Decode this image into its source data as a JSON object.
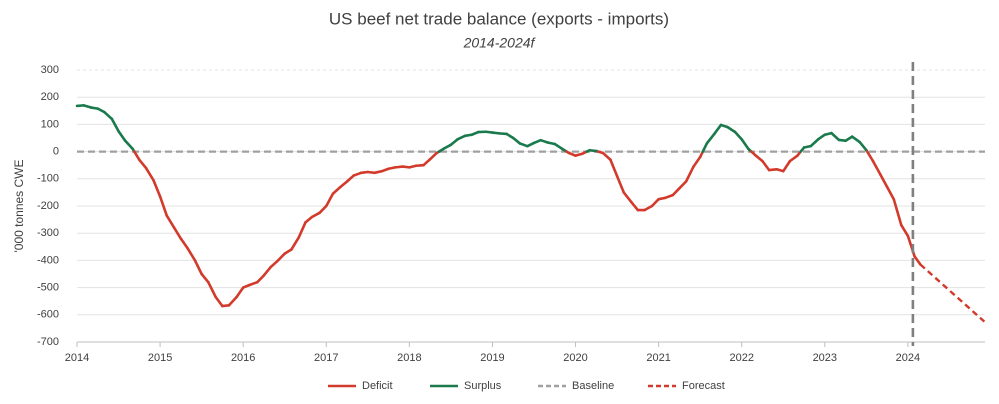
{
  "chart_data": {
    "type": "line",
    "title": "US beef net trade balance (exports - imports)",
    "subtitle": "2014-2024f",
    "y_label": "'000 tonnes CWE",
    "x": [
      2014.0,
      2014.08,
      2014.17,
      2014.25,
      2014.33,
      2014.42,
      2014.5,
      2014.58,
      2014.67,
      2014.75,
      2014.83,
      2014.92,
      2015.0,
      2015.08,
      2015.17,
      2015.25,
      2015.33,
      2015.42,
      2015.5,
      2015.58,
      2015.67,
      2015.75,
      2015.83,
      2015.92,
      2016.0,
      2016.08,
      2016.17,
      2016.25,
      2016.33,
      2016.42,
      2016.5,
      2016.58,
      2016.67,
      2016.75,
      2016.83,
      2016.92,
      2017.0,
      2017.08,
      2017.17,
      2017.25,
      2017.33,
      2017.42,
      2017.5,
      2017.58,
      2017.67,
      2017.75,
      2017.83,
      2017.92,
      2018.0,
      2018.08,
      2018.17,
      2018.25,
      2018.33,
      2018.42,
      2018.5,
      2018.58,
      2018.67,
      2018.75,
      2018.83,
      2018.92,
      2019.0,
      2019.08,
      2019.17,
      2019.25,
      2019.33,
      2019.42,
      2019.5,
      2019.58,
      2019.67,
      2019.75,
      2019.83,
      2019.92,
      2020.0,
      2020.08,
      2020.17,
      2020.25,
      2020.33,
      2020.42,
      2020.5,
      2020.58,
      2020.67,
      2020.75,
      2020.83,
      2020.92,
      2021.0,
      2021.08,
      2021.17,
      2021.25,
      2021.33,
      2021.42,
      2021.5,
      2021.58,
      2021.67,
      2021.75,
      2021.83,
      2021.92,
      2022.0,
      2022.08,
      2022.17,
      2022.25,
      2022.33,
      2022.42,
      2022.5,
      2022.58,
      2022.67,
      2022.75,
      2022.83,
      2022.92,
      2023.0,
      2023.08,
      2023.17,
      2023.25,
      2023.33,
      2023.42,
      2023.5,
      2023.58,
      2023.67,
      2023.75,
      2023.83,
      2023.92,
      2024.0,
      2024.08,
      2024.15
    ],
    "values": [
      168,
      170,
      162,
      158,
      145,
      120,
      75,
      40,
      10,
      -30,
      -60,
      -105,
      -165,
      -235,
      -280,
      -320,
      -355,
      -400,
      -450,
      -480,
      -535,
      -568,
      -565,
      -535,
      -500,
      -490,
      -480,
      -455,
      -425,
      -400,
      -375,
      -360,
      -315,
      -260,
      -240,
      -225,
      -200,
      -155,
      -130,
      -110,
      -88,
      -78,
      -75,
      -78,
      -72,
      -63,
      -58,
      -55,
      -58,
      -52,
      -50,
      -28,
      -5,
      12,
      25,
      45,
      58,
      62,
      72,
      73,
      70,
      67,
      65,
      50,
      30,
      20,
      32,
      42,
      33,
      28,
      12,
      -5,
      -15,
      -8,
      5,
      2,
      -5,
      -30,
      -90,
      -150,
      -185,
      -215,
      -215,
      -200,
      -175,
      -170,
      -160,
      -135,
      -110,
      -55,
      -20,
      30,
      65,
      98,
      90,
      72,
      45,
      10,
      -15,
      -35,
      -68,
      -65,
      -72,
      -35,
      -15,
      15,
      20,
      45,
      62,
      68,
      43,
      40,
      55,
      35,
      5,
      -35,
      -85,
      -130,
      -175,
      -270,
      -310,
      -385,
      -415
    ],
    "forecast": {
      "x": [
        2024.15,
        2024.92
      ],
      "values": [
        -415,
        -625
      ]
    },
    "baseline": 0,
    "marker_x": 2024.06,
    "legend": [
      {
        "name": "Deficit",
        "color": "#d23a2b",
        "dash": false
      },
      {
        "name": "Surplus",
        "color": "#1a7a4c",
        "dash": false
      },
      {
        "name": "Baseline",
        "color": "#a0a0a0",
        "dash": true
      },
      {
        "name": "Forecast",
        "color": "#d23a2b",
        "dash": true
      }
    ],
    "xlim": [
      2014,
      2025
    ],
    "xticks": [
      2014,
      2015,
      2016,
      2017,
      2018,
      2019,
      2020,
      2021,
      2022,
      2023,
      2024
    ],
    "ylim": [
      -700,
      300
    ],
    "yticks": [
      -700,
      -600,
      -500,
      -400,
      -300,
      -200,
      -100,
      0,
      100,
      200,
      300
    ],
    "grid": true
  }
}
